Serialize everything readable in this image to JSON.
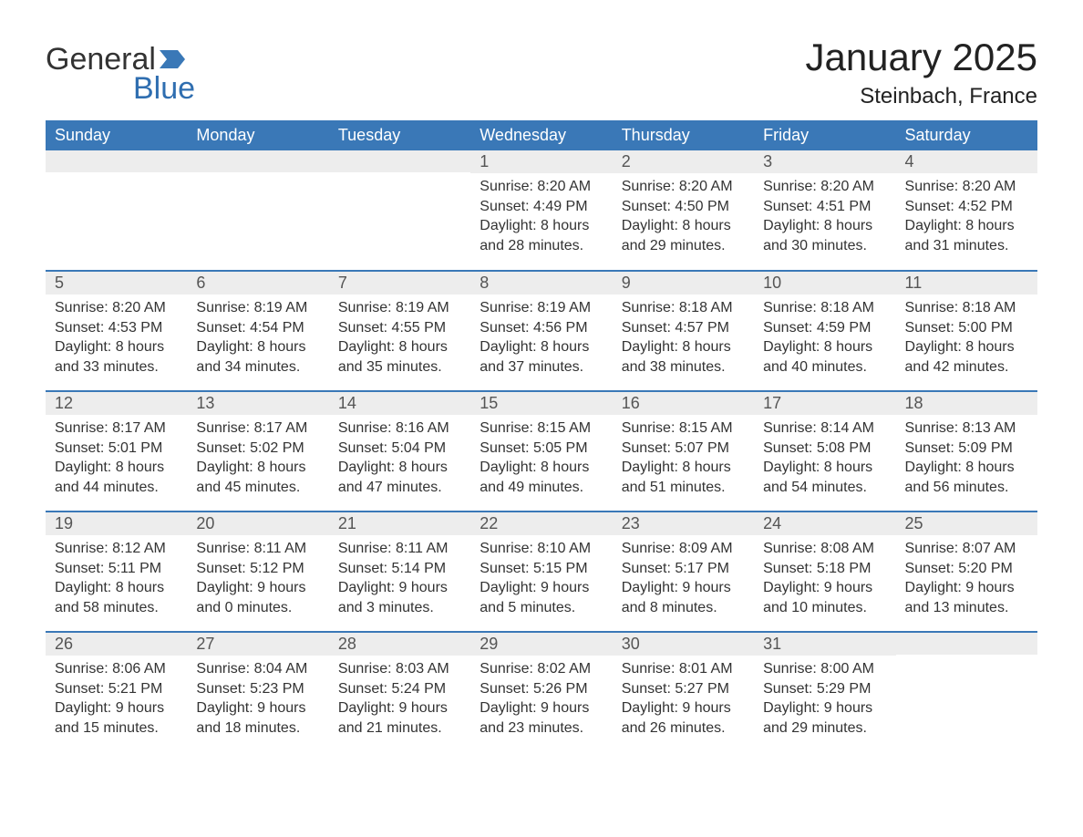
{
  "logo": {
    "word1": "General",
    "word2": "Blue",
    "text_color": "#333333",
    "accent_color": "#2f6eb0",
    "flag_color": "#3a78b7"
  },
  "title": {
    "month_year": "January 2025",
    "location": "Steinbach, France",
    "title_fontsize": 42,
    "location_fontsize": 24,
    "text_color": "#222222"
  },
  "styling": {
    "header_row_bg": "#3a78b7",
    "header_row_text": "#ffffff",
    "daynum_bg": "#ededed",
    "daynum_text": "#555555",
    "body_text": "#333333",
    "row_divider": "#3a78b7",
    "background": "#ffffff",
    "header_fontsize": 18,
    "daynum_fontsize": 18,
    "content_fontsize": 16
  },
  "weekdays": [
    "Sunday",
    "Monday",
    "Tuesday",
    "Wednesday",
    "Thursday",
    "Friday",
    "Saturday"
  ],
  "weeks": [
    [
      {
        "n": "",
        "sr": "",
        "ss": "",
        "dl1": "",
        "dl2": ""
      },
      {
        "n": "",
        "sr": "",
        "ss": "",
        "dl1": "",
        "dl2": ""
      },
      {
        "n": "",
        "sr": "",
        "ss": "",
        "dl1": "",
        "dl2": ""
      },
      {
        "n": "1",
        "sr": "Sunrise: 8:20 AM",
        "ss": "Sunset: 4:49 PM",
        "dl1": "Daylight: 8 hours",
        "dl2": "and 28 minutes."
      },
      {
        "n": "2",
        "sr": "Sunrise: 8:20 AM",
        "ss": "Sunset: 4:50 PM",
        "dl1": "Daylight: 8 hours",
        "dl2": "and 29 minutes."
      },
      {
        "n": "3",
        "sr": "Sunrise: 8:20 AM",
        "ss": "Sunset: 4:51 PM",
        "dl1": "Daylight: 8 hours",
        "dl2": "and 30 minutes."
      },
      {
        "n": "4",
        "sr": "Sunrise: 8:20 AM",
        "ss": "Sunset: 4:52 PM",
        "dl1": "Daylight: 8 hours",
        "dl2": "and 31 minutes."
      }
    ],
    [
      {
        "n": "5",
        "sr": "Sunrise: 8:20 AM",
        "ss": "Sunset: 4:53 PM",
        "dl1": "Daylight: 8 hours",
        "dl2": "and 33 minutes."
      },
      {
        "n": "6",
        "sr": "Sunrise: 8:19 AM",
        "ss": "Sunset: 4:54 PM",
        "dl1": "Daylight: 8 hours",
        "dl2": "and 34 minutes."
      },
      {
        "n": "7",
        "sr": "Sunrise: 8:19 AM",
        "ss": "Sunset: 4:55 PM",
        "dl1": "Daylight: 8 hours",
        "dl2": "and 35 minutes."
      },
      {
        "n": "8",
        "sr": "Sunrise: 8:19 AM",
        "ss": "Sunset: 4:56 PM",
        "dl1": "Daylight: 8 hours",
        "dl2": "and 37 minutes."
      },
      {
        "n": "9",
        "sr": "Sunrise: 8:18 AM",
        "ss": "Sunset: 4:57 PM",
        "dl1": "Daylight: 8 hours",
        "dl2": "and 38 minutes."
      },
      {
        "n": "10",
        "sr": "Sunrise: 8:18 AM",
        "ss": "Sunset: 4:59 PM",
        "dl1": "Daylight: 8 hours",
        "dl2": "and 40 minutes."
      },
      {
        "n": "11",
        "sr": "Sunrise: 8:18 AM",
        "ss": "Sunset: 5:00 PM",
        "dl1": "Daylight: 8 hours",
        "dl2": "and 42 minutes."
      }
    ],
    [
      {
        "n": "12",
        "sr": "Sunrise: 8:17 AM",
        "ss": "Sunset: 5:01 PM",
        "dl1": "Daylight: 8 hours",
        "dl2": "and 44 minutes."
      },
      {
        "n": "13",
        "sr": "Sunrise: 8:17 AM",
        "ss": "Sunset: 5:02 PM",
        "dl1": "Daylight: 8 hours",
        "dl2": "and 45 minutes."
      },
      {
        "n": "14",
        "sr": "Sunrise: 8:16 AM",
        "ss": "Sunset: 5:04 PM",
        "dl1": "Daylight: 8 hours",
        "dl2": "and 47 minutes."
      },
      {
        "n": "15",
        "sr": "Sunrise: 8:15 AM",
        "ss": "Sunset: 5:05 PM",
        "dl1": "Daylight: 8 hours",
        "dl2": "and 49 minutes."
      },
      {
        "n": "16",
        "sr": "Sunrise: 8:15 AM",
        "ss": "Sunset: 5:07 PM",
        "dl1": "Daylight: 8 hours",
        "dl2": "and 51 minutes."
      },
      {
        "n": "17",
        "sr": "Sunrise: 8:14 AM",
        "ss": "Sunset: 5:08 PM",
        "dl1": "Daylight: 8 hours",
        "dl2": "and 54 minutes."
      },
      {
        "n": "18",
        "sr": "Sunrise: 8:13 AM",
        "ss": "Sunset: 5:09 PM",
        "dl1": "Daylight: 8 hours",
        "dl2": "and 56 minutes."
      }
    ],
    [
      {
        "n": "19",
        "sr": "Sunrise: 8:12 AM",
        "ss": "Sunset: 5:11 PM",
        "dl1": "Daylight: 8 hours",
        "dl2": "and 58 minutes."
      },
      {
        "n": "20",
        "sr": "Sunrise: 8:11 AM",
        "ss": "Sunset: 5:12 PM",
        "dl1": "Daylight: 9 hours",
        "dl2": "and 0 minutes."
      },
      {
        "n": "21",
        "sr": "Sunrise: 8:11 AM",
        "ss": "Sunset: 5:14 PM",
        "dl1": "Daylight: 9 hours",
        "dl2": "and 3 minutes."
      },
      {
        "n": "22",
        "sr": "Sunrise: 8:10 AM",
        "ss": "Sunset: 5:15 PM",
        "dl1": "Daylight: 9 hours",
        "dl2": "and 5 minutes."
      },
      {
        "n": "23",
        "sr": "Sunrise: 8:09 AM",
        "ss": "Sunset: 5:17 PM",
        "dl1": "Daylight: 9 hours",
        "dl2": "and 8 minutes."
      },
      {
        "n": "24",
        "sr": "Sunrise: 8:08 AM",
        "ss": "Sunset: 5:18 PM",
        "dl1": "Daylight: 9 hours",
        "dl2": "and 10 minutes."
      },
      {
        "n": "25",
        "sr": "Sunrise: 8:07 AM",
        "ss": "Sunset: 5:20 PM",
        "dl1": "Daylight: 9 hours",
        "dl2": "and 13 minutes."
      }
    ],
    [
      {
        "n": "26",
        "sr": "Sunrise: 8:06 AM",
        "ss": "Sunset: 5:21 PM",
        "dl1": "Daylight: 9 hours",
        "dl2": "and 15 minutes."
      },
      {
        "n": "27",
        "sr": "Sunrise: 8:04 AM",
        "ss": "Sunset: 5:23 PM",
        "dl1": "Daylight: 9 hours",
        "dl2": "and 18 minutes."
      },
      {
        "n": "28",
        "sr": "Sunrise: 8:03 AM",
        "ss": "Sunset: 5:24 PM",
        "dl1": "Daylight: 9 hours",
        "dl2": "and 21 minutes."
      },
      {
        "n": "29",
        "sr": "Sunrise: 8:02 AM",
        "ss": "Sunset: 5:26 PM",
        "dl1": "Daylight: 9 hours",
        "dl2": "and 23 minutes."
      },
      {
        "n": "30",
        "sr": "Sunrise: 8:01 AM",
        "ss": "Sunset: 5:27 PM",
        "dl1": "Daylight: 9 hours",
        "dl2": "and 26 minutes."
      },
      {
        "n": "31",
        "sr": "Sunrise: 8:00 AM",
        "ss": "Sunset: 5:29 PM",
        "dl1": "Daylight: 9 hours",
        "dl2": "and 29 minutes."
      },
      {
        "n": "",
        "sr": "",
        "ss": "",
        "dl1": "",
        "dl2": ""
      }
    ]
  ]
}
